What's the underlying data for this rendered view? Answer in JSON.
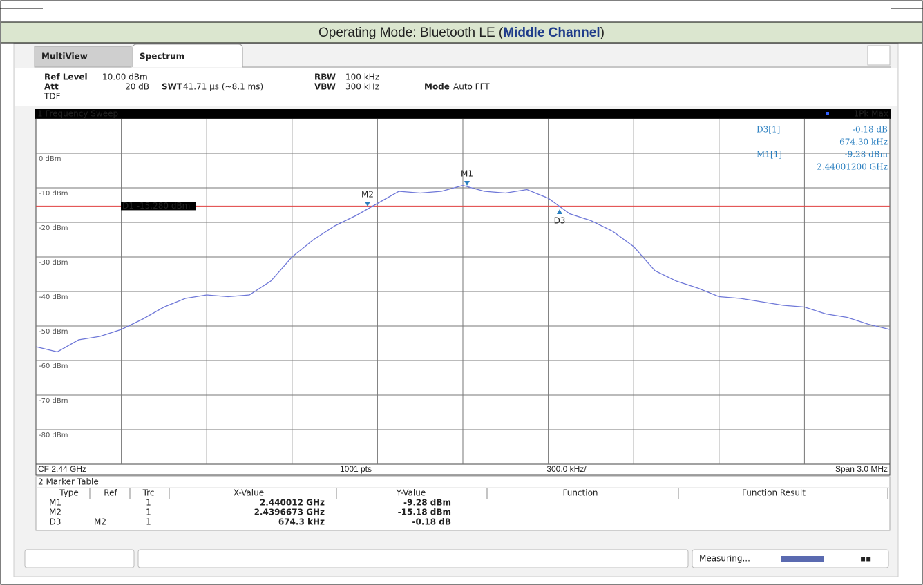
{
  "header": {
    "prefix": "Operating Mode: Bluetooth LE (",
    "highlight": "Middle Channel",
    "suffix": ")"
  },
  "tabs": [
    "MultiView",
    "Spectrum"
  ],
  "settings": {
    "ref_level_label": "Ref Level",
    "ref_level": "10.00 dBm",
    "att_label": "Att",
    "att": "20 dB",
    "tdf": "TDF",
    "swt_label": "SWT",
    "swt": "41.71 µs (~8.1 ms)",
    "rbw_label": "RBW",
    "rbw": "100 kHz",
    "vbw_label": "VBW",
    "vbw": "300 kHz",
    "mode_label": "Mode",
    "mode": "Auto FFT"
  },
  "chart_data": {
    "type": "line",
    "title": "1 Frequency Sweep",
    "series": [
      {
        "name": "1Pk Max",
        "color": "#6f78d8",
        "values": [
          -56,
          -57.5,
          -54,
          -53,
          -51,
          -48,
          -44.5,
          -42,
          -41,
          -41.5,
          -41,
          -37,
          -30,
          -25,
          -21,
          -18,
          -14.5,
          -11,
          -11.5,
          -11,
          -9.3,
          -11,
          -11.5,
          -10.5,
          -13,
          -17.5,
          -19.5,
          -22.5,
          -27,
          -34,
          -37,
          -39,
          -41.5,
          -42,
          -43,
          -44,
          -44.5,
          -46.5,
          -47.5,
          -49.5,
          -51
        ]
      }
    ],
    "ylim": [
      -90,
      10
    ],
    "yticks": [
      {
        "value": 0,
        "label": "0 dBm"
      },
      {
        "value": -10,
        "label": "-10 dBm"
      },
      {
        "value": -20,
        "label": "-20 dBm"
      },
      {
        "value": -30,
        "label": "-30 dBm"
      },
      {
        "value": -40,
        "label": "-40 dBm"
      },
      {
        "value": -50,
        "label": "-50 dBm"
      },
      {
        "value": -60,
        "label": "-60 dBm"
      },
      {
        "value": -70,
        "label": "-70 dBm"
      },
      {
        "value": -80,
        "label": "-80 dBm"
      }
    ],
    "grid": true,
    "display_line": {
      "value": -15.28,
      "label": "D1 -15.280 dBm",
      "color": "#e04040"
    },
    "markers": [
      "M1",
      "M2",
      "D3"
    ],
    "readout": [
      {
        "name": "D3[1]",
        "lines": [
          "-0.18 dB",
          "674.30 kHz"
        ]
      },
      {
        "name": "M1[1]",
        "lines": [
          "-9.28 dBm",
          "2.44001200 GHz"
        ]
      }
    ],
    "footer": [
      "CF 2.44 GHz",
      "1001 pts",
      "300.0 kHz/",
      "Span 3.0 MHz"
    ]
  },
  "marker_table": {
    "title": "2 Marker Table",
    "columns": [
      "Type",
      "Ref",
      "Trc",
      "X-Value",
      "Y-Value",
      "Function",
      "Function Result"
    ],
    "rows": [
      {
        "type": "M1",
        "trc": "1",
        "x": "2.440012 GHz",
        "y": "-9.28 dBm"
      },
      {
        "type": "M2",
        "trc": "1",
        "x": "2.4396673 GHz",
        "y": "-15.18 dBm"
      },
      {
        "type": "D3",
        "ref": "M2",
        "trc": "1",
        "x": "674.3 kHz",
        "y": "-0.18 dB"
      }
    ]
  },
  "status": "Measuring..."
}
